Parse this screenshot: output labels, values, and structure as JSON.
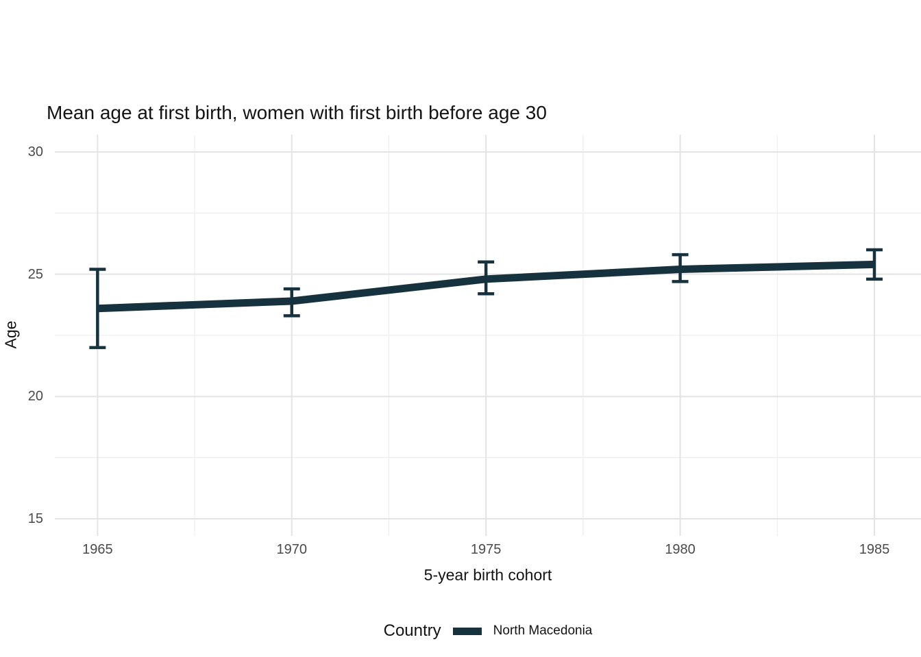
{
  "title": "Mean age at first birth, women with first birth before age 30",
  "y_axis_label": "Age",
  "x_axis_label": "5-year birth cohort",
  "legend": {
    "title": "Country",
    "series_label": "North Macedonia"
  },
  "colors": {
    "series": "#16323e",
    "grid_major": "#e3e3e3",
    "grid_minor": "#eeeeee",
    "tick_label": "#4a4a4a",
    "text": "#131313",
    "background": "#ffffff"
  },
  "chart_data": {
    "type": "line",
    "title": "Mean age at first birth, women with first birth before age 30",
    "xlabel": "5-year birth cohort",
    "ylabel": "Age",
    "legend_title": "Country",
    "legend_position": "bottom",
    "grid": true,
    "x_ticks": [
      1965,
      1970,
      1975,
      1980,
      1985
    ],
    "x_minor_ticks": [
      1967.5,
      1972.5,
      1977.5,
      1982.5
    ],
    "y_ticks": [
      15,
      20,
      25,
      30
    ],
    "y_minor_ticks": [
      17.5,
      22.5,
      27.5
    ],
    "x_domain": [
      1963.9,
      1986.2
    ],
    "y_domain": [
      14.3,
      30.7
    ],
    "series": [
      {
        "name": "North Macedonia",
        "x": [
          1965,
          1970,
          1975,
          1980,
          1985
        ],
        "mean": [
          23.6,
          23.9,
          24.8,
          25.2,
          25.4
        ],
        "ci_low": [
          22.0,
          23.3,
          24.2,
          24.7,
          24.8
        ],
        "ci_high": [
          25.2,
          24.4,
          25.5,
          25.8,
          26.0
        ]
      }
    ]
  }
}
